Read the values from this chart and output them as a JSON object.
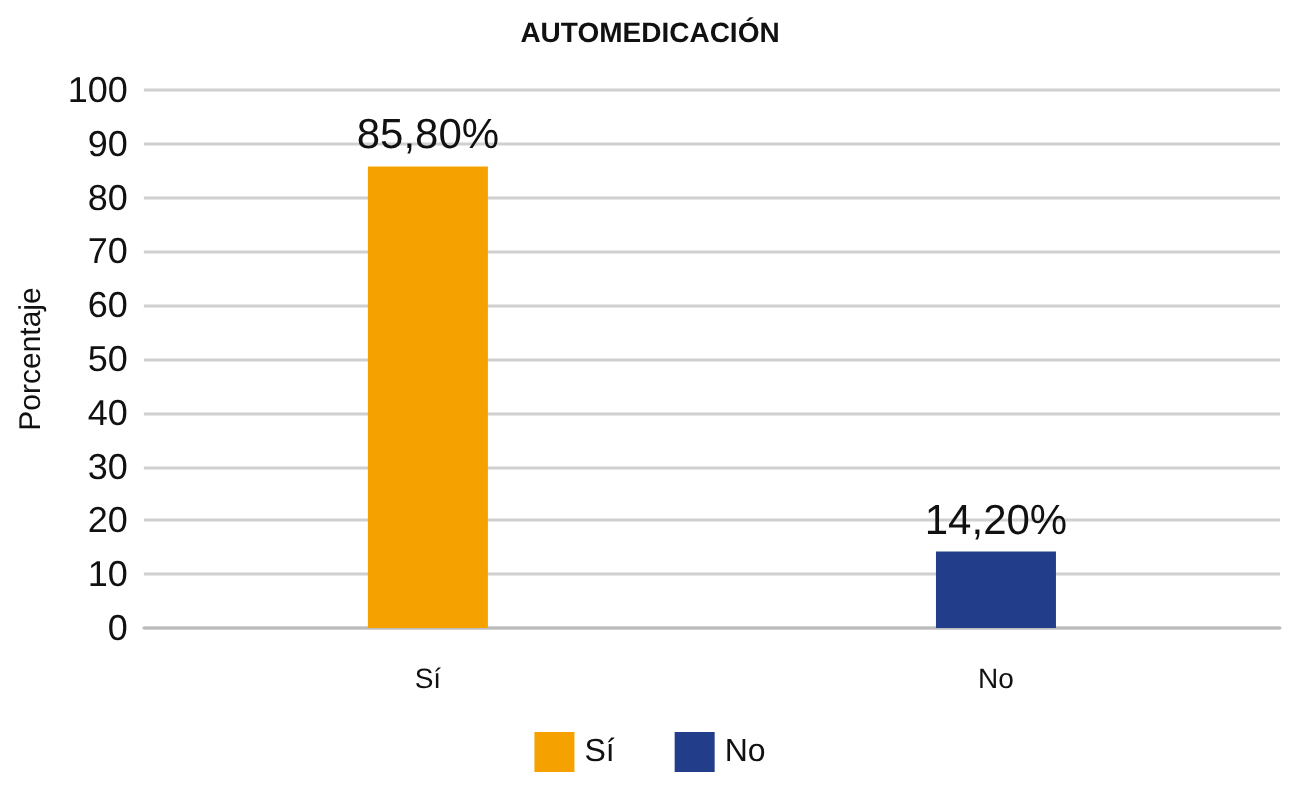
{
  "chart_data": {
    "type": "bar",
    "title": "AUTOMEDICACIÓN",
    "ylabel": "Porcentaje",
    "categories": [
      "Sí",
      "No"
    ],
    "series": [
      {
        "name": "Sí",
        "color": "#f5a200",
        "values": [
          85.8,
          null
        ],
        "value_labels": [
          "85,80%",
          null
        ]
      },
      {
        "name": "No",
        "color": "#223d8a",
        "values": [
          null,
          14.2
        ],
        "value_labels": [
          null,
          "14,20%"
        ]
      }
    ],
    "ylim": [
      0,
      100
    ],
    "yticks": [
      0,
      10,
      20,
      30,
      40,
      50,
      60,
      70,
      80,
      90,
      100
    ],
    "grid": "y",
    "legend": "bottom"
  }
}
